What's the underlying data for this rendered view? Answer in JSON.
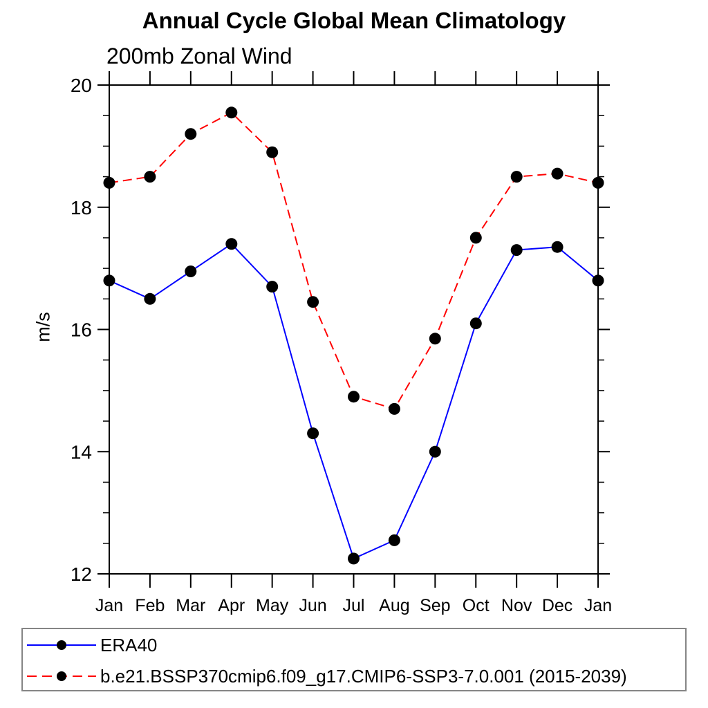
{
  "page": {
    "background": "#ffffff"
  },
  "chart_data": {
    "type": "line",
    "title": "Annual Cycle Global Mean Climatology",
    "subtitle": "200mb Zonal Wind",
    "ylabel": "m/s",
    "xlabel": "",
    "ylim": [
      12,
      20
    ],
    "yticks_major": [
      12,
      14,
      16,
      18,
      20
    ],
    "ytick_minor_step": 0.5,
    "grid": false,
    "legend_position": "bottom",
    "axis_color": "#000000",
    "legend_border_color": "#858585",
    "categories": [
      "Jan",
      "Feb",
      "Mar",
      "Apr",
      "May",
      "Jun",
      "Jul",
      "Aug",
      "Sep",
      "Oct",
      "Nov",
      "Dec",
      "Jan"
    ],
    "series": [
      {
        "name": "ERA40",
        "color": "#0000ff",
        "line_style": "solid",
        "marker": "filled-circle",
        "marker_color": "#000000",
        "values": [
          16.8,
          16.5,
          16.95,
          17.4,
          16.7,
          14.3,
          12.25,
          12.55,
          14.0,
          16.1,
          17.3,
          17.35,
          16.8
        ]
      },
      {
        "name": "b.e21.BSSP370cmip6.f09_g17.CMIP6-SSP3-7.0.001 (2015-2039)",
        "color": "#ff0000",
        "line_style": "dashed",
        "marker": "filled-circle",
        "marker_color": "#000000",
        "values": [
          18.4,
          18.5,
          19.2,
          19.55,
          18.9,
          16.45,
          14.9,
          14.7,
          15.85,
          17.5,
          18.5,
          18.55,
          18.4
        ]
      }
    ]
  }
}
